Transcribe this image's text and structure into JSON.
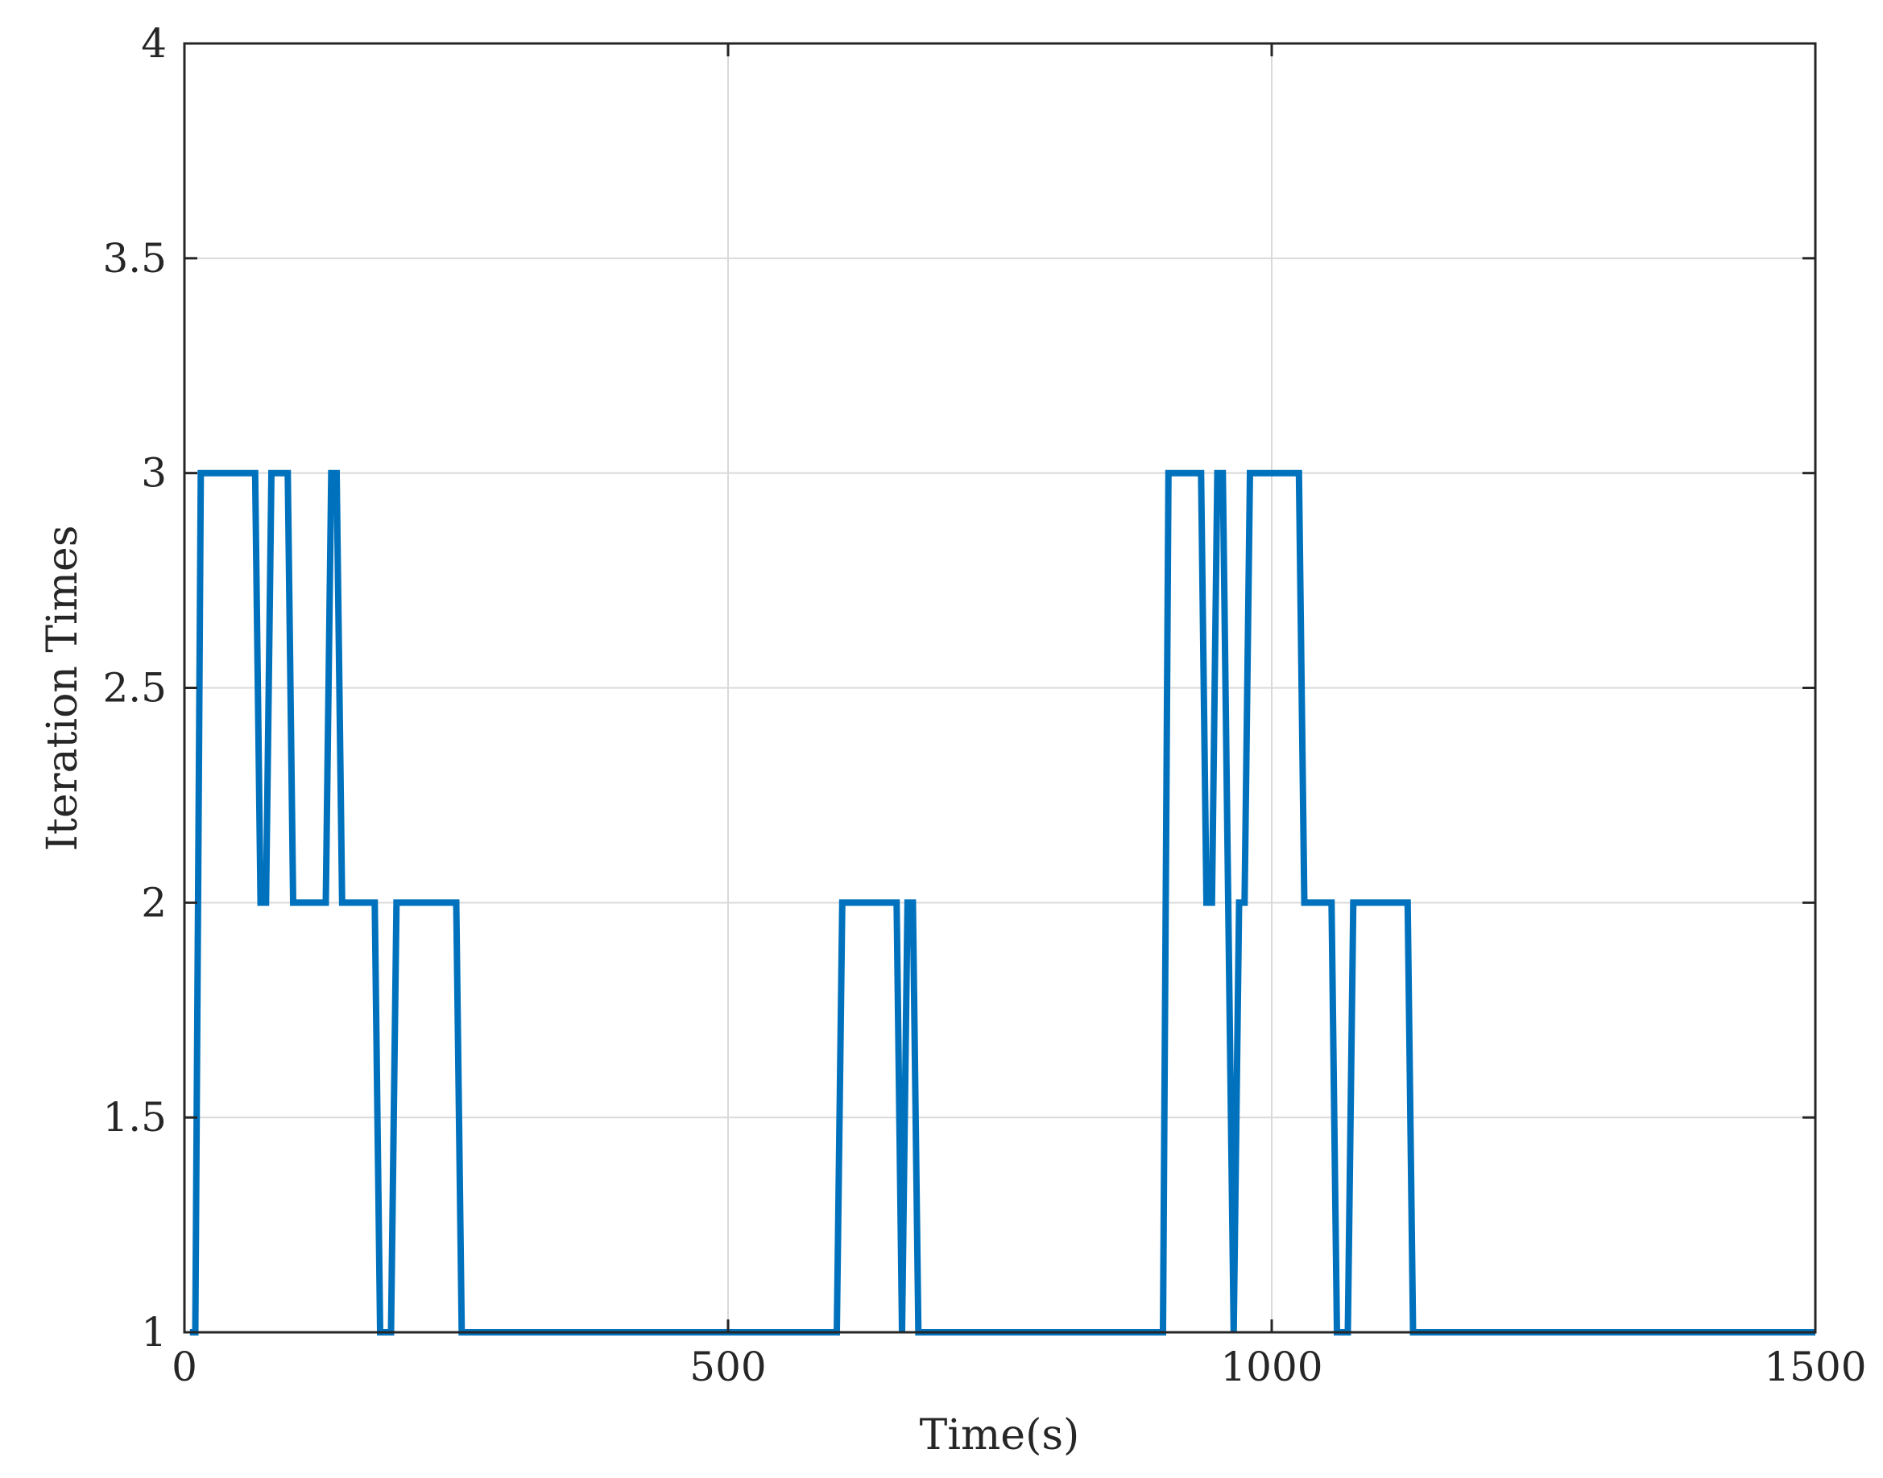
{
  "chart_data": {
    "type": "line",
    "title": "",
    "xlabel": "Time(s)",
    "ylabel": "Iteration Times",
    "xlim": [
      0,
      1500
    ],
    "ylim": [
      1,
      4
    ],
    "x_ticks": [
      "0",
      "500",
      "1000",
      "1500"
    ],
    "y_ticks": [
      "1",
      "1.5",
      "2",
      "2.5",
      "3",
      "3.5",
      "4"
    ],
    "grid": true,
    "legend": "none",
    "colors": {
      "line": "#0072BD",
      "axis": "#262626",
      "grid": "#d9d9d9"
    },
    "series": [
      {
        "x": [
          5,
          10,
          15,
          65,
          70,
          75,
          80,
          95,
          100,
          130,
          135,
          140,
          145,
          175,
          180,
          190,
          195,
          250,
          255,
          600,
          605,
          655,
          660,
          665,
          670,
          675,
          900,
          905,
          935,
          940,
          945,
          950,
          955,
          960,
          965,
          970,
          975,
          980,
          1025,
          1030,
          1055,
          1060,
          1070,
          1075,
          1125,
          1130,
          1500
        ],
        "y": [
          1,
          1,
          3,
          3,
          2,
          2,
          3,
          3,
          2,
          2,
          3,
          3,
          2,
          2,
          1,
          1,
          2,
          2,
          1,
          1,
          2,
          2,
          1,
          2,
          2,
          1,
          1,
          3,
          3,
          2,
          2,
          3,
          3,
          2,
          1,
          2,
          2,
          3,
          3,
          2,
          2,
          1,
          1,
          2,
          2,
          1,
          1
        ]
      }
    ]
  }
}
